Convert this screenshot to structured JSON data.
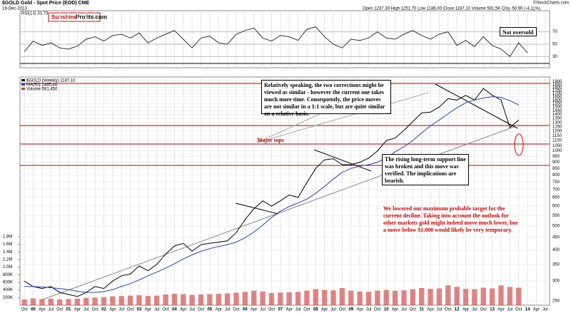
{
  "chart_data": [
    {
      "type": "line",
      "name": "RSI(14) 31.73",
      "series": [
        {
          "name": "RSI(14) 31.73",
          "color": "#333333",
          "values": [
            38,
            55,
            48,
            52,
            44,
            42,
            47,
            58,
            62,
            55,
            64,
            66,
            60,
            68,
            52,
            60,
            66,
            72,
            58,
            44,
            60,
            63,
            52,
            50,
            66,
            72,
            76,
            60,
            55,
            64,
            62,
            56,
            74,
            78,
            62,
            50,
            44,
            58,
            56,
            60,
            70,
            60,
            58,
            66,
            72,
            64,
            58,
            66,
            70,
            48,
            56,
            46,
            62,
            48,
            42,
            30,
            52,
            36,
            null,
            null
          ]
        }
      ],
      "ylim": [
        12,
        104
      ],
      "yticks": [
        30,
        50,
        70
      ],
      "grid": true
    },
    {
      "type": "line",
      "title": "$GOLD Gold - Spot Price (EOD) CME",
      "subtitle": "19-Dec-2013",
      "quote": "Open 1237.30 High 1251.70 Low 1186.00 Close 1187.10 Volume 591.5K Chg -50.90 (-4.11%)",
      "source": "©StockCharts.com",
      "logo": [
        "Sunshine",
        "Profits.com"
      ],
      "categories": [
        "Oct",
        "00",
        "Apr",
        "Jul",
        "Oct",
        "01",
        "Apr",
        "Jul",
        "Oct",
        "02",
        "Apr",
        "Jul",
        "Oct",
        "03",
        "Apr",
        "Jul",
        "Oct",
        "04",
        "Apr",
        "Jul",
        "Oct",
        "05",
        "Apr",
        "Jul",
        "Oct",
        "06",
        "Apr",
        "Jul",
        "Oct",
        "07",
        "Apr",
        "Jul",
        "Oct",
        "08",
        "Apr",
        "Jul",
        "Oct",
        "09",
        "Apr",
        "Jul",
        "Oct",
        "10",
        "Apr",
        "Jul",
        "Oct",
        "11",
        "Apr",
        "Jul",
        "Oct",
        "12",
        "Apr",
        "Jul",
        "Oct",
        "13",
        "Apr",
        "Jul",
        "Oct",
        "14",
        "Apr",
        "Jul"
      ],
      "series": [
        {
          "name": "$GOLD (Weekly) 1187.10",
          "color": "#000000",
          "values": [
            300,
            285,
            280,
            285,
            270,
            265,
            260,
            270,
            285,
            280,
            300,
            315,
            320,
            345,
            330,
            350,
            385,
            415,
            425,
            395,
            420,
            425,
            430,
            435,
            470,
            530,
            585,
            630,
            600,
            630,
            665,
            650,
            745,
            850,
            920,
            930,
            880,
            880,
            900,
            935,
            1000,
            1100,
            1125,
            1210,
            1310,
            1420,
            1430,
            1500,
            1620,
            1600,
            1670,
            1600,
            1780,
            1675,
            1600,
            1240,
            1330,
            null,
            null,
            null
          ]
        },
        {
          "name": "MA(50) 1485.44",
          "color": "#2a3fbf",
          "values": [
            285,
            285,
            284,
            282,
            280,
            277,
            273,
            270,
            270,
            272,
            277,
            285,
            293,
            303,
            315,
            326,
            338,
            352,
            368,
            382,
            395,
            405,
            413,
            420,
            430,
            448,
            472,
            503,
            540,
            572,
            598,
            618,
            640,
            675,
            720,
            770,
            820,
            850,
            868,
            880,
            900,
            940,
            990,
            1040,
            1100,
            1180,
            1260,
            1330,
            1410,
            1490,
            1560,
            1600,
            1630,
            1650,
            1640,
            1590,
            1530,
            null,
            null,
            null
          ]
        },
        {
          "name": "Volume 591,450",
          "color": "#cc3333",
          "axis": "y2",
          "values": [
            150000,
            180000,
            160000,
            170000,
            150000,
            160000,
            170000,
            190000,
            200000,
            210000,
            230000,
            240000,
            250000,
            260000,
            240000,
            250000,
            280000,
            300000,
            290000,
            270000,
            280000,
            290000,
            300000,
            310000,
            330000,
            350000,
            380000,
            360000,
            320000,
            330000,
            340000,
            350000,
            380000,
            420000,
            400000,
            390000,
            450000,
            380000,
            360000,
            350000,
            380000,
            400000,
            380000,
            390000,
            420000,
            450000,
            430000,
            440000,
            520000,
            480000,
            430000,
            420000,
            460000,
            440000,
            520000,
            480000,
            460000,
            null,
            null,
            null
          ]
        }
      ],
      "log": true,
      "ylim": [
        240,
        1980
      ],
      "yticks": [
        250,
        300,
        350,
        400,
        450,
        500,
        550,
        600,
        650,
        700,
        750,
        800,
        850,
        900,
        950,
        1000,
        1050,
        1100,
        1150,
        1200,
        1250,
        1300,
        1350,
        1400,
        1450,
        1500,
        1550,
        1600,
        1650,
        1700,
        1750,
        1800,
        1850,
        1900
      ],
      "y2lim": [
        0,
        6000000
      ],
      "y2ticks": [
        {
          "value": 200000,
          "label": "200K"
        },
        {
          "value": 400000,
          "label": "400K"
        },
        {
          "value": 600000,
          "label": "600K"
        },
        {
          "value": 800000,
          "label": "800K"
        },
        {
          "value": 1000000,
          "label": "1.0M"
        },
        {
          "value": 1200000,
          "label": "1.2M"
        },
        {
          "value": 1400000,
          "label": "1.4M"
        },
        {
          "value": 1600000,
          "label": "1.6M"
        },
        {
          "value": 1800000,
          "label": "1.8M"
        }
      ],
      "grid": true,
      "annotations": [
        "Not oversold",
        "Relatively speaking, the two corrections might be viewed as similar - however the current one takes much more time. Consequently, the price moves are not similar in a 1:1 scale, but are quite similar on a relative basis.",
        "Major tops",
        "The rising long-term support line was broken and this move was verified. The implications are bearish.",
        "We lowered our maximum probable target for the current decline. Taking into account the outlook for other markets gold might indeed move much lower, but a move below $1,000 would likely be very temporary."
      ]
    }
  ]
}
